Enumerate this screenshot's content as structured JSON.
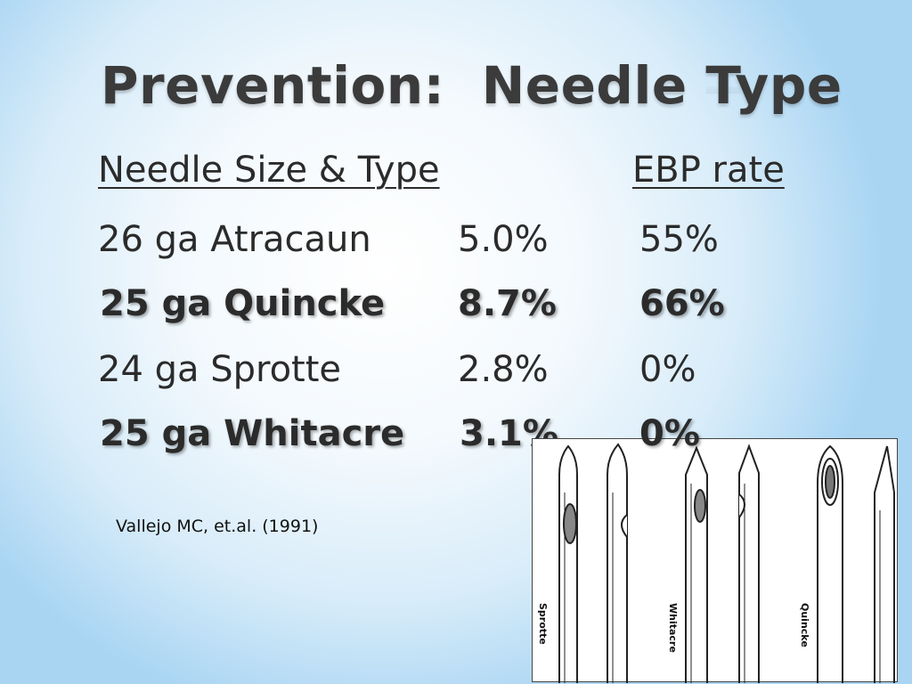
{
  "title": "Prevention:  Needle Type",
  "headers": {
    "size_type": "Needle Size & Type",
    "ebp_rate": "EBP rate"
  },
  "rows": [
    {
      "needle": "26 ga Atracaun",
      "rate1": "5.0%",
      "rate2": "55%",
      "bold": false
    },
    {
      "needle": "25 ga Quincke",
      "rate1": "8.7%",
      "rate2": "66%",
      "bold": true
    },
    {
      "needle": "24 ga Sprotte",
      "rate1": "2.8%",
      "rate2": "0%",
      "bold": false
    },
    {
      "needle": "25 ga Whitacre",
      "rate1": "3.1%",
      "rate2": "0%",
      "bold": true
    }
  ],
  "citation": "Vallejo MC, et.al. (1991)",
  "figure": {
    "labels": [
      "Sprotte",
      "Whitacre",
      "Quincke"
    ]
  }
}
